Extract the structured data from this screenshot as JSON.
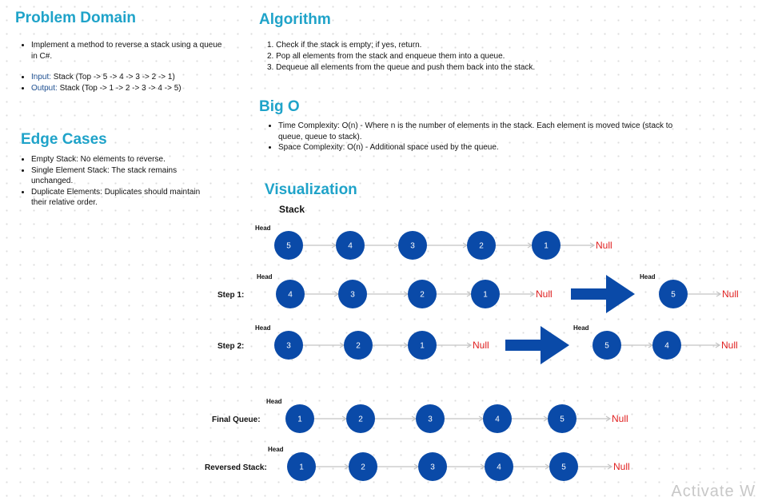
{
  "problem_domain": {
    "title": "Problem Domain",
    "bullet1": "Implement a method to reverse a stack using a queue in C#.",
    "input_label": "Input:",
    "input_value": " Stack (Top -> 5 -> 4 -> 3 -> 2 -> 1)",
    "output_label": "Output:",
    "output_value": " Stack (Top -> 1 -> 2 -> 3 -> 4 -> 5)"
  },
  "edge_cases": {
    "title": "Edge Cases",
    "items": [
      "Empty Stack: No elements to reverse.",
      "Single Element Stack: The stack remains unchanged.",
      "Duplicate Elements: Duplicates should maintain their relative order."
    ]
  },
  "algorithm": {
    "title": "Algorithm",
    "steps": [
      "1. Check if the stack is empty; if yes, return.",
      "2. Pop all elements from the stack and enqueue them into a queue.",
      "3. Dequeue all elements from the queue and push them back into the stack."
    ]
  },
  "big_o": {
    "title": "Big O",
    "items": [
      "Time Complexity: O(n) - Where n is the number of elements in the stack. Each element is moved twice (stack to queue, queue to stack).",
      "Space Complexity: O(n) - Additional space used by the queue."
    ]
  },
  "visualization": {
    "title": "Visualization",
    "stack_label": "Stack",
    "head_label": "Head",
    "null_label": "Null",
    "colors": {
      "node": "#0a4aa8",
      "null": "#e02020",
      "arrow": "#0a4aa8",
      "connector": "#c4c4c4"
    },
    "rows": [
      {
        "label": "",
        "lists": [
          [
            "5",
            "4",
            "3",
            "2",
            "1"
          ]
        ]
      },
      {
        "label": "Step 1:",
        "lists": [
          [
            "4",
            "3",
            "2",
            "1"
          ],
          [
            "5"
          ]
        ]
      },
      {
        "label": "Step 2:",
        "lists": [
          [
            "3",
            "2",
            "1"
          ],
          [
            "5",
            "4"
          ]
        ]
      },
      {
        "label": "Final Queue:",
        "lists": [
          [
            "1",
            "2",
            "3",
            "4",
            "5"
          ]
        ]
      },
      {
        "label": "Reversed Stack:",
        "lists": [
          [
            "1",
            "2",
            "3",
            "4",
            "5"
          ]
        ]
      }
    ]
  },
  "watermark": "Activate W"
}
